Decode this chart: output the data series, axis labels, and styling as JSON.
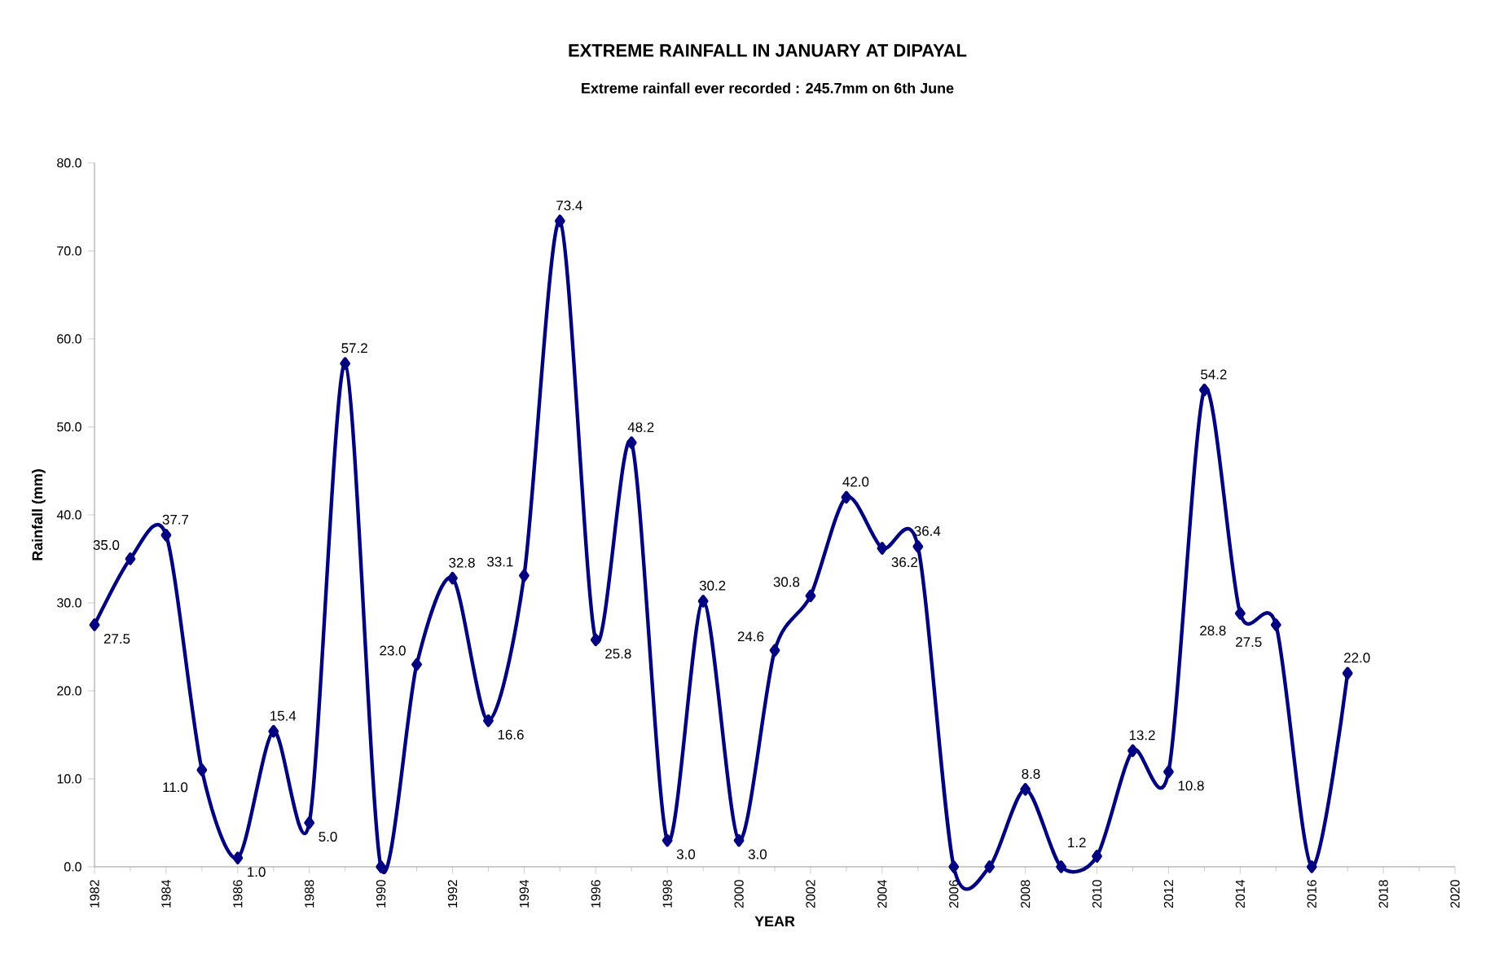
{
  "chart_data": {
    "type": "line",
    "title": "EXTREME RAINFALL IN JANUARY AT DIPAYAL",
    "subtitle": "Extreme rainfall  ever recorded : 245.7mm  on 6th June",
    "xlabel": "YEAR",
    "ylabel": "Rainfall (mm)",
    "x": [
      1982,
      1983,
      1984,
      1985,
      1986,
      1987,
      1988,
      1989,
      1990,
      1991,
      1992,
      1993,
      1994,
      1995,
      1996,
      1997,
      1998,
      1999,
      2000,
      2001,
      2002,
      2003,
      2004,
      2005,
      2006,
      2007,
      2008,
      2009,
      2010,
      2011,
      2012,
      2013,
      2014,
      2015,
      2016,
      2017
    ],
    "series": [
      {
        "color": "#000080",
        "values": [
          27.5,
          35.0,
          37.7,
          11.0,
          1.0,
          15.4,
          5.0,
          57.2,
          0,
          23.0,
          32.8,
          16.6,
          33.1,
          73.4,
          25.8,
          48.2,
          3.0,
          30.2,
          3.0,
          24.6,
          30.8,
          42.0,
          36.2,
          36.4,
          0,
          0,
          8.8,
          0,
          1.2,
          13.2,
          10.8,
          54.2,
          28.8,
          27.5,
          0,
          22.0
        ],
        "value_labels": [
          "27.5",
          "35.0",
          "37.7",
          "11.0",
          "1.0",
          "15.4",
          "5.0",
          "57.2",
          null,
          "23.0",
          "32.8",
          "16.6",
          "33.1",
          "73.4",
          "25.8",
          "48.2",
          "3.0",
          "30.2",
          "3.0",
          "24.6",
          "30.8",
          "42.0",
          "36.2",
          "36.4",
          null,
          null,
          "8.8",
          null,
          "1.2",
          "13.2",
          "10.8",
          "54.2",
          "28.8",
          "27.5",
          null,
          "22.0"
        ]
      }
    ],
    "xlim": [
      1982,
      2020
    ],
    "xticks": [
      1982,
      1984,
      1986,
      1988,
      1990,
      1992,
      1994,
      1996,
      1998,
      2000,
      2002,
      2004,
      2006,
      2008,
      2010,
      2012,
      2014,
      2016,
      2018,
      2020
    ],
    "ylim": [
      0,
      80
    ],
    "yticks": [
      {
        "value": 0,
        "label": "0.0"
      },
      {
        "value": 10,
        "label": "10.0"
      },
      {
        "value": 20,
        "label": "20.0"
      },
      {
        "value": 30,
        "label": "30.0"
      },
      {
        "value": 40,
        "label": "40.0"
      },
      {
        "value": 50,
        "label": "50.0"
      },
      {
        "value": 60,
        "label": "60.0"
      },
      {
        "value": 70,
        "label": "70.0"
      },
      {
        "value": 80,
        "label": "80.0"
      }
    ],
    "grid": false,
    "legend": false,
    "marker": "diamond",
    "line_style": "solid"
  }
}
